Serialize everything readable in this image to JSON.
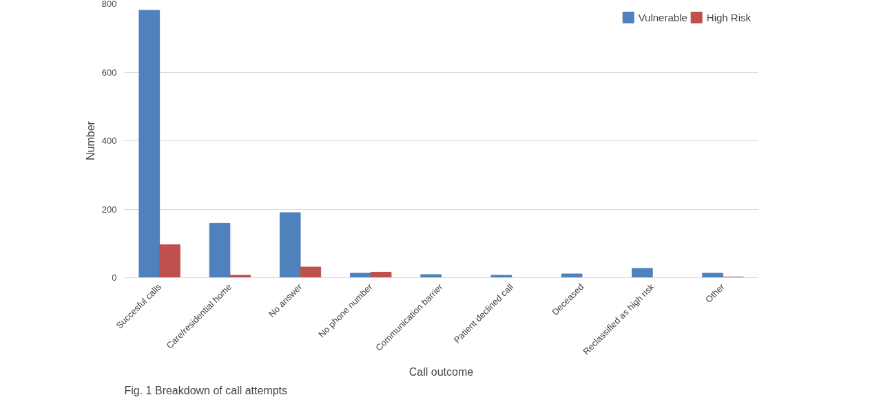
{
  "chart_data": {
    "type": "bar",
    "xlabel": "Call outcome",
    "ylabel": "Number",
    "categories": [
      "Succesful calls",
      "Care/residential home",
      "No answer",
      "No phone number",
      "Communication barrier",
      "Patient declined call",
      "Deceased",
      "Reclassified as high risk",
      "Other"
    ],
    "series": [
      {
        "name": "Vulnerable",
        "color": "#4f81bd",
        "values": [
          781,
          159,
          190,
          13,
          9,
          7,
          11,
          27,
          13
        ]
      },
      {
        "name": "High Risk",
        "color": "#c0504d",
        "values": [
          96,
          7,
          31,
          16,
          0,
          0,
          0,
          0,
          2
        ]
      }
    ],
    "ylim": [
      0,
      800
    ],
    "yticks": [
      0,
      200,
      400,
      600,
      800
    ],
    "grid": "y",
    "legend": "top right",
    "annotations": [
      "Fig. 1 Breakdown of call attempts"
    ]
  }
}
